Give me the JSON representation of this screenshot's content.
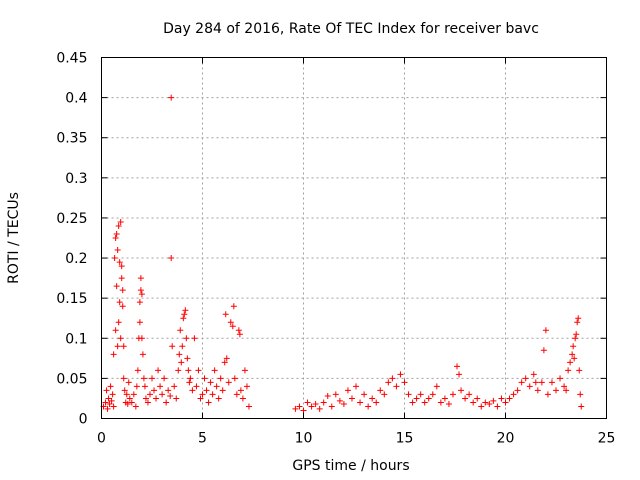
{
  "chart_data": {
    "type": "scatter",
    "title": "Day 284 of 2016, Rate Of TEC Index for receiver bavc",
    "xlabel": "GPS time / hours",
    "ylabel": "ROTI / TECUs",
    "xlim": [
      0,
      25
    ],
    "ylim": [
      0,
      0.45
    ],
    "xticks": [
      0,
      5,
      10,
      15,
      20,
      25
    ],
    "yticks": [
      0,
      0.05,
      0.1,
      0.15,
      0.2,
      0.25,
      0.3,
      0.35,
      0.4,
      0.45
    ],
    "xtick_labels": [
      "0",
      "5",
      "10",
      "15",
      "20",
      "25"
    ],
    "ytick_labels": [
      "0",
      "0.05",
      "0.1",
      "0.15",
      "0.2",
      "0.25",
      "0.3",
      "0.35",
      "0.4",
      "0.45"
    ],
    "grid": true,
    "marker": "+",
    "series": [
      {
        "name": "ROTI",
        "color": "#ff0000",
        "points": [
          [
            0.1,
            0.015
          ],
          [
            0.2,
            0.02
          ],
          [
            0.25,
            0.035
          ],
          [
            0.3,
            0.012
          ],
          [
            0.35,
            0.025
          ],
          [
            0.4,
            0.018
          ],
          [
            0.45,
            0.04
          ],
          [
            0.5,
            0.022
          ],
          [
            0.55,
            0.03
          ],
          [
            0.6,
            0.015
          ],
          [
            0.6,
            0.08
          ],
          [
            0.65,
            0.2
          ],
          [
            0.7,
            0.11
          ],
          [
            0.7,
            0.225
          ],
          [
            0.75,
            0.23
          ],
          [
            0.75,
            0.165
          ],
          [
            0.8,
            0.09
          ],
          [
            0.8,
            0.21
          ],
          [
            0.85,
            0.24
          ],
          [
            0.85,
            0.12
          ],
          [
            0.9,
            0.195
          ],
          [
            0.9,
            0.145
          ],
          [
            0.95,
            0.245
          ],
          [
            0.95,
            0.1
          ],
          [
            1.0,
            0.19
          ],
          [
            1.0,
            0.175
          ],
          [
            1.05,
            0.16
          ],
          [
            1.05,
            0.14
          ],
          [
            1.1,
            0.09
          ],
          [
            1.1,
            0.05
          ],
          [
            1.15,
            0.035
          ],
          [
            1.2,
            0.02
          ],
          [
            1.25,
            0.03
          ],
          [
            1.3,
            0.018
          ],
          [
            1.35,
            0.045
          ],
          [
            1.4,
            0.025
          ],
          [
            1.5,
            0.02
          ],
          [
            1.6,
            0.03
          ],
          [
            1.7,
            0.015
          ],
          [
            1.75,
            0.04
          ],
          [
            1.8,
            0.06
          ],
          [
            1.85,
            0.1
          ],
          [
            1.9,
            0.12
          ],
          [
            1.9,
            0.145
          ],
          [
            1.95,
            0.16
          ],
          [
            1.95,
            0.175
          ],
          [
            2.0,
            0.155
          ],
          [
            2.0,
            0.1
          ],
          [
            2.05,
            0.08
          ],
          [
            2.1,
            0.05
          ],
          [
            2.15,
            0.04
          ],
          [
            2.2,
            0.025
          ],
          [
            2.3,
            0.02
          ],
          [
            2.4,
            0.03
          ],
          [
            2.5,
            0.05
          ],
          [
            2.6,
            0.035
          ],
          [
            2.7,
            0.025
          ],
          [
            2.8,
            0.06
          ],
          [
            2.9,
            0.04
          ],
          [
            3.0,
            0.03
          ],
          [
            3.1,
            0.05
          ],
          [
            3.2,
            0.02
          ],
          [
            3.3,
            0.035
          ],
          [
            3.4,
            0.028
          ],
          [
            3.45,
            0.4
          ],
          [
            3.45,
            0.2
          ],
          [
            3.5,
            0.09
          ],
          [
            3.6,
            0.04
          ],
          [
            3.7,
            0.025
          ],
          [
            3.8,
            0.06
          ],
          [
            3.85,
            0.08
          ],
          [
            3.9,
            0.11
          ],
          [
            3.95,
            0.07
          ],
          [
            4.0,
            0.09
          ],
          [
            4.05,
            0.125
          ],
          [
            4.1,
            0.13
          ],
          [
            4.15,
            0.135
          ],
          [
            4.2,
            0.1
          ],
          [
            4.25,
            0.075
          ],
          [
            4.3,
            0.06
          ],
          [
            4.35,
            0.045
          ],
          [
            4.4,
            0.05
          ],
          [
            4.5,
            0.035
          ],
          [
            4.6,
            0.1
          ],
          [
            4.7,
            0.04
          ],
          [
            4.8,
            0.06
          ],
          [
            4.9,
            0.025
          ],
          [
            5.0,
            0.03
          ],
          [
            5.1,
            0.05
          ],
          [
            5.2,
            0.035
          ],
          [
            5.3,
            0.02
          ],
          [
            5.4,
            0.045
          ],
          [
            5.5,
            0.03
          ],
          [
            5.6,
            0.06
          ],
          [
            5.7,
            0.04
          ],
          [
            5.8,
            0.025
          ],
          [
            5.9,
            0.05
          ],
          [
            6.0,
            0.035
          ],
          [
            6.1,
            0.07
          ],
          [
            6.15,
            0.13
          ],
          [
            6.2,
            0.075
          ],
          [
            6.3,
            0.045
          ],
          [
            6.4,
            0.12
          ],
          [
            6.5,
            0.115
          ],
          [
            6.55,
            0.14
          ],
          [
            6.6,
            0.05
          ],
          [
            6.7,
            0.03
          ],
          [
            6.8,
            0.11
          ],
          [
            6.85,
            0.105
          ],
          [
            6.9,
            0.035
          ],
          [
            7.0,
            0.025
          ],
          [
            7.1,
            0.06
          ],
          [
            7.2,
            0.04
          ],
          [
            7.3,
            0.015
          ],
          [
            9.6,
            0.012
          ],
          [
            9.8,
            0.015
          ],
          [
            10.0,
            0.01
          ],
          [
            10.2,
            0.02
          ],
          [
            10.4,
            0.015
          ],
          [
            10.6,
            0.018
          ],
          [
            10.8,
            0.012
          ],
          [
            11.0,
            0.02
          ],
          [
            11.2,
            0.028
          ],
          [
            11.4,
            0.015
          ],
          [
            11.6,
            0.03
          ],
          [
            11.8,
            0.022
          ],
          [
            12.0,
            0.018
          ],
          [
            12.2,
            0.035
          ],
          [
            12.4,
            0.025
          ],
          [
            12.6,
            0.04
          ],
          [
            12.8,
            0.02
          ],
          [
            13.0,
            0.03
          ],
          [
            13.2,
            0.015
          ],
          [
            13.4,
            0.025
          ],
          [
            13.6,
            0.02
          ],
          [
            13.8,
            0.035
          ],
          [
            14.0,
            0.03
          ],
          [
            14.2,
            0.045
          ],
          [
            14.4,
            0.05
          ],
          [
            14.6,
            0.04
          ],
          [
            14.8,
            0.055
          ],
          [
            15.0,
            0.045
          ],
          [
            15.2,
            0.03
          ],
          [
            15.4,
            0.02
          ],
          [
            15.6,
            0.025
          ],
          [
            15.8,
            0.03
          ],
          [
            16.0,
            0.02
          ],
          [
            16.2,
            0.025
          ],
          [
            16.4,
            0.03
          ],
          [
            16.6,
            0.04
          ],
          [
            16.8,
            0.02
          ],
          [
            17.0,
            0.025
          ],
          [
            17.2,
            0.018
          ],
          [
            17.4,
            0.03
          ],
          [
            17.6,
            0.065
          ],
          [
            17.7,
            0.055
          ],
          [
            17.8,
            0.035
          ],
          [
            18.0,
            0.025
          ],
          [
            18.2,
            0.03
          ],
          [
            18.4,
            0.02
          ],
          [
            18.6,
            0.025
          ],
          [
            18.8,
            0.015
          ],
          [
            19.0,
            0.02
          ],
          [
            19.2,
            0.018
          ],
          [
            19.4,
            0.022
          ],
          [
            19.6,
            0.015
          ],
          [
            19.8,
            0.025
          ],
          [
            20.0,
            0.02
          ],
          [
            20.2,
            0.025
          ],
          [
            20.4,
            0.03
          ],
          [
            20.6,
            0.035
          ],
          [
            20.8,
            0.045
          ],
          [
            21.0,
            0.05
          ],
          [
            21.2,
            0.04
          ],
          [
            21.4,
            0.055
          ],
          [
            21.5,
            0.045
          ],
          [
            21.6,
            0.035
          ],
          [
            21.8,
            0.045
          ],
          [
            21.9,
            0.085
          ],
          [
            22.0,
            0.11
          ],
          [
            22.1,
            0.03
          ],
          [
            22.3,
            0.045
          ],
          [
            22.5,
            0.035
          ],
          [
            22.7,
            0.05
          ],
          [
            22.9,
            0.04
          ],
          [
            23.0,
            0.035
          ],
          [
            23.1,
            0.06
          ],
          [
            23.2,
            0.07
          ],
          [
            23.3,
            0.08
          ],
          [
            23.35,
            0.09
          ],
          [
            23.4,
            0.075
          ],
          [
            23.45,
            0.1
          ],
          [
            23.5,
            0.105
          ],
          [
            23.55,
            0.12
          ],
          [
            23.6,
            0.125
          ],
          [
            23.65,
            0.06
          ],
          [
            23.7,
            0.03
          ],
          [
            23.75,
            0.015
          ]
        ]
      }
    ]
  }
}
